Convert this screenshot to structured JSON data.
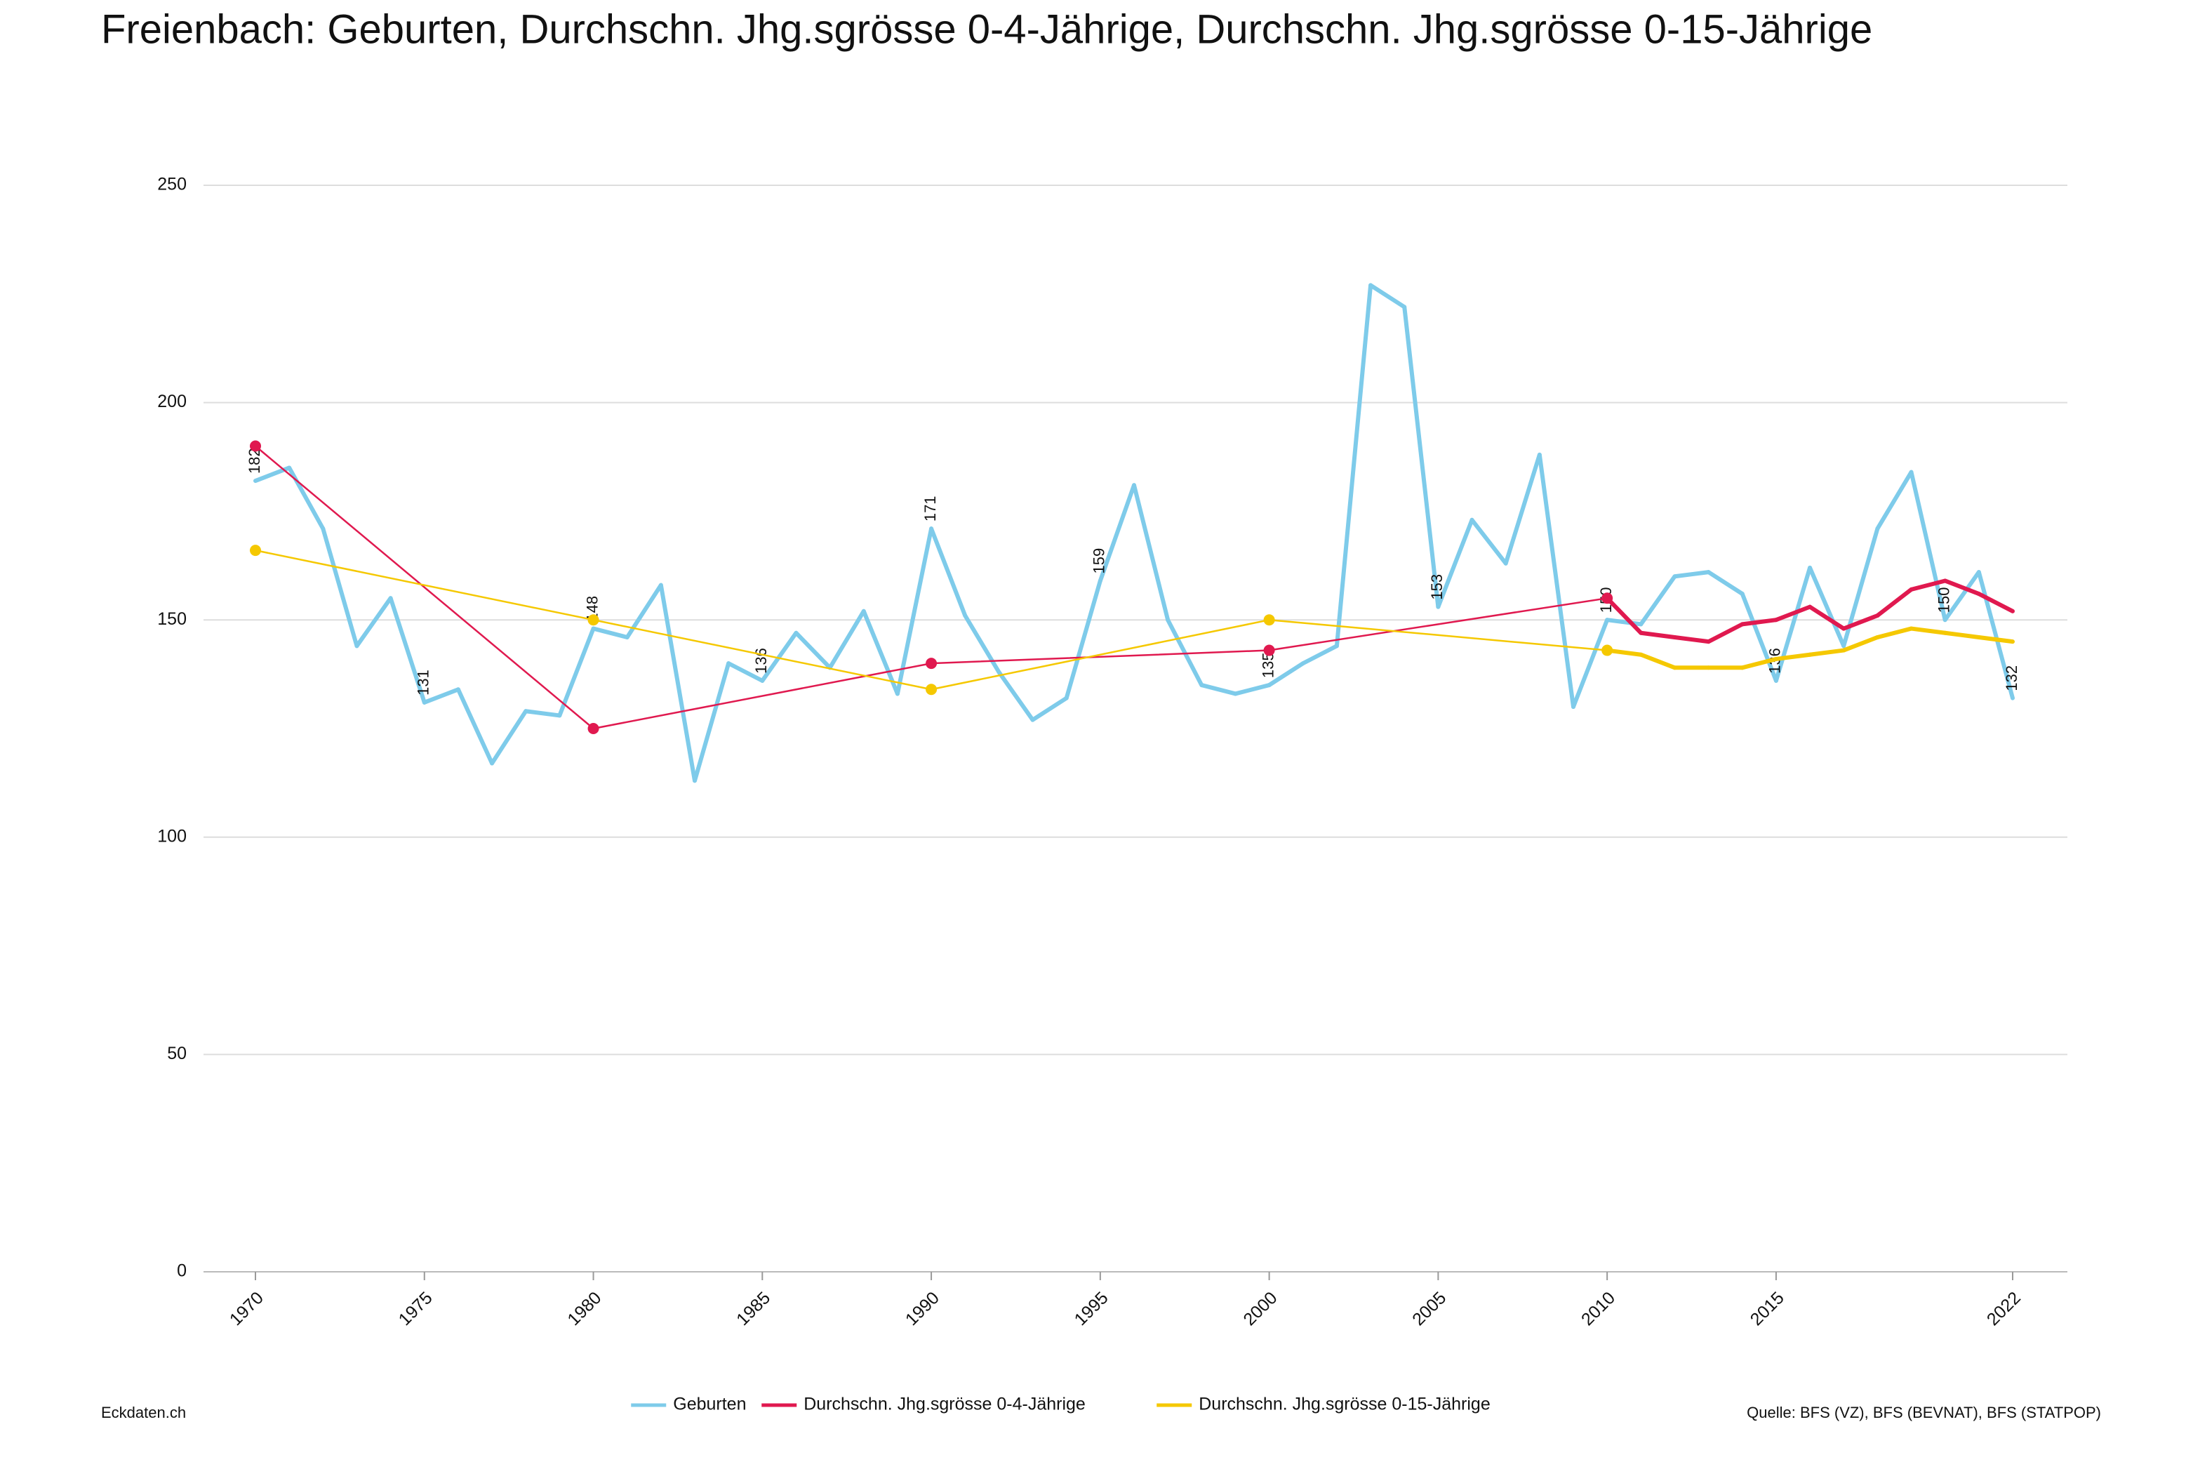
{
  "chart_data": {
    "type": "line",
    "title": "Freienbach: Geburten, Durchschn. Jhg.sgrösse 0-4-Jährige, Durchschn. Jhg.sgrösse 0-15-Jährige",
    "xlim": [
      1970,
      2022
    ],
    "xticks": [
      1970,
      1975,
      1980,
      1985,
      1990,
      1995,
      2000,
      2005,
      2010,
      2015,
      2022
    ],
    "ylim": [
      0,
      250
    ],
    "yticks": [
      0,
      50,
      100,
      150,
      200,
      250
    ],
    "grid": true,
    "legend": "bottom",
    "series": [
      {
        "name": "Geburten",
        "color": "#7ecbea",
        "x": [
          1970,
          1971,
          1972,
          1973,
          1974,
          1975,
          1976,
          1977,
          1978,
          1979,
          1980,
          1981,
          1982,
          1983,
          1984,
          1985,
          1986,
          1987,
          1988,
          1989,
          1990,
          1991,
          1992,
          1993,
          1994,
          1995,
          1996,
          1997,
          1998,
          1999,
          2000,
          2001,
          2002,
          2003,
          2004,
          2005,
          2006,
          2007,
          2008,
          2009,
          2010,
          2011,
          2012,
          2013,
          2014,
          2015,
          2016,
          2017,
          2018,
          2019,
          2020,
          2021,
          2022
        ],
        "values": [
          182,
          185,
          171,
          144,
          155,
          131,
          134,
          117,
          129,
          128,
          148,
          146,
          158,
          113,
          140,
          136,
          147,
          139,
          152,
          133,
          171,
          151,
          138,
          127,
          132,
          159,
          181,
          150,
          135,
          133,
          135,
          140,
          144,
          227,
          222,
          153,
          173,
          163,
          188,
          130,
          150,
          149,
          160,
          161,
          156,
          136,
          162,
          144,
          171,
          184,
          150,
          161,
          132
        ],
        "value_labels": [
          "182",
          null,
          null,
          null,
          null,
          "131",
          null,
          null,
          null,
          null,
          "148",
          null,
          null,
          null,
          null,
          "136",
          null,
          null,
          null,
          null,
          "171",
          null,
          null,
          null,
          null,
          "159",
          null,
          null,
          null,
          null,
          "135",
          null,
          null,
          null,
          null,
          "153",
          null,
          null,
          null,
          null,
          "150",
          null,
          null,
          null,
          null,
          "136",
          null,
          null,
          null,
          null,
          "150",
          null,
          "132"
        ]
      },
      {
        "name": "Durchschn. Jhg.sgrösse 0-4-Jährige",
        "color": "#e0194f",
        "x": [
          1970,
          1980,
          1990,
          2000,
          2010,
          2011,
          2012,
          2013,
          2014,
          2015,
          2016,
          2017,
          2018,
          2019,
          2020,
          2021,
          2022
        ],
        "values": [
          190,
          125,
          140,
          143,
          155,
          147,
          146,
          145,
          149,
          150,
          153,
          148,
          151,
          157,
          159,
          156,
          152
        ]
      },
      {
        "name": "Durchschn. Jhg.sgrösse 0-15-Jährige",
        "color": "#f5c800",
        "x": [
          1970,
          1980,
          1990,
          2000,
          2010,
          2011,
          2012,
          2013,
          2014,
          2015,
          2016,
          2017,
          2018,
          2019,
          2020,
          2021,
          2022
        ],
        "values": [
          166,
          150,
          134,
          150,
          143,
          142,
          139,
          139,
          139,
          141,
          142,
          143,
          146,
          148,
          147,
          146,
          145
        ]
      }
    ]
  },
  "footer": {
    "left": "Eckdaten.ch",
    "right": "Quelle: BFS (VZ), BFS (BEVNAT), BFS (STATPOP)"
  }
}
